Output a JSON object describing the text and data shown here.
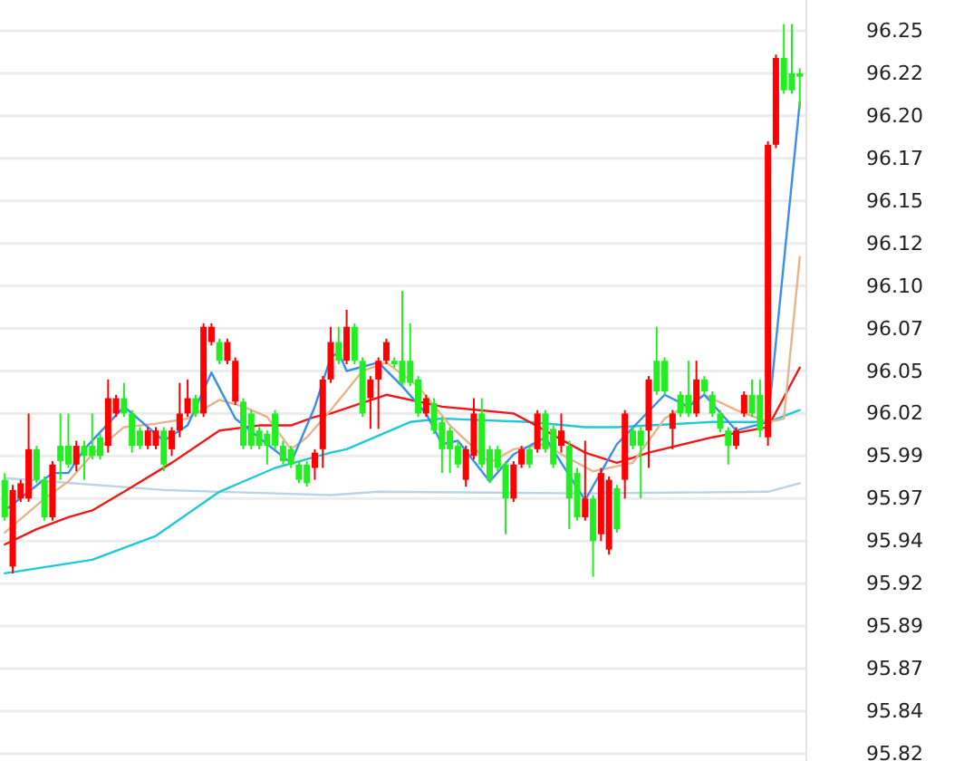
{
  "chart_data": {
    "type": "candlestick",
    "categories": [
      null,
      null,
      null,
      null,
      null,
      null,
      null,
      null,
      null,
      null,
      null,
      null,
      null,
      null,
      null,
      null,
      null,
      null,
      null,
      null,
      null,
      null,
      null,
      null,
      null,
      null,
      null,
      null,
      null,
      null,
      null,
      null,
      null,
      null,
      null,
      null,
      null,
      null,
      null,
      null,
      null,
      null,
      null,
      null,
      null,
      null,
      null,
      null,
      null,
      null,
      null,
      null,
      null,
      null,
      null,
      null,
      null,
      null,
      null,
      null,
      null,
      null,
      null,
      null,
      null,
      null,
      null,
      null,
      null,
      null,
      null,
      null,
      null,
      null,
      null,
      null,
      null,
      null,
      null,
      null,
      null,
      null,
      null,
      null,
      null,
      null,
      null,
      null,
      null,
      null,
      null,
      null,
      null,
      null,
      null,
      null,
      null,
      null,
      null,
      null,
      null
    ],
    "ohlc": [
      [
        95.981,
        95.985,
        95.957,
        95.959
      ],
      [
        95.93,
        95.978,
        95.926,
        95.975
      ],
      [
        95.97,
        95.981,
        95.968,
        95.979
      ],
      [
        95.97,
        96.02,
        95.968,
        95.999
      ],
      [
        95.999,
        96.001,
        95.979,
        95.981
      ],
      [
        95.981,
        95.983,
        95.957,
        95.959
      ],
      [
        95.959,
        95.992,
        95.957,
        95.99
      ],
      [
        96.001,
        96.02,
        95.981,
        95.992
      ],
      [
        96.001,
        96.02,
        95.988,
        95.99
      ],
      [
        95.99,
        96.004,
        95.986,
        96.001
      ],
      [
        96.001,
        96.004,
        95.981,
        95.995
      ],
      [
        96.001,
        96.02,
        95.993,
        95.995
      ],
      [
        96.006,
        96.008,
        95.993,
        95.995
      ],
      [
        96.001,
        96.04,
        95.997,
        96.029
      ],
      [
        96.02,
        96.031,
        96.018,
        96.029
      ],
      [
        96.029,
        96.038,
        96.018,
        96.02
      ],
      [
        96.02,
        96.022,
        95.997,
        96.001
      ],
      [
        96.01,
        96.012,
        95.999,
        96.001
      ],
      [
        96.001,
        96.012,
        95.999,
        96.01
      ],
      [
        96.001,
        96.012,
        95.999,
        96.01
      ],
      [
        96.01,
        96.012,
        95.986,
        95.99
      ],
      [
        95.999,
        96.012,
        95.995,
        96.01
      ],
      [
        96.01,
        96.038,
        96.006,
        96.02
      ],
      [
        96.02,
        96.04,
        96.018,
        96.029
      ],
      [
        96.029,
        96.031,
        96.018,
        96.02
      ],
      [
        96.02,
        96.073,
        96.018,
        96.071
      ],
      [
        96.062,
        96.073,
        96.06,
        96.071
      ],
      [
        96.062,
        96.064,
        96.049,
        96.051
      ],
      [
        96.051,
        96.064,
        96.049,
        96.062
      ],
      [
        96.027,
        96.053,
        96.025,
        96.051
      ],
      [
        96.027,
        96.029,
        95.999,
        96.001
      ],
      [
        96.02,
        96.022,
        95.999,
        96.001
      ],
      [
        96.01,
        96.012,
        95.999,
        96.001
      ],
      [
        96.008,
        96.01,
        95.99,
        96.001
      ],
      [
        96.02,
        96.022,
        95.999,
        96.001
      ],
      [
        96.001,
        96.004,
        95.99,
        95.992
      ],
      [
        95.999,
        96.001,
        95.988,
        95.99
      ],
      [
        95.99,
        95.992,
        95.979,
        95.981
      ],
      [
        95.99,
        95.992,
        95.977,
        95.979
      ],
      [
        95.988,
        95.999,
        95.981,
        95.997
      ],
      [
        95.999,
        96.042,
        95.988,
        96.04
      ],
      [
        96.04,
        96.071,
        96.038,
        96.062
      ],
      [
        96.062,
        96.071,
        96.049,
        96.051
      ],
      [
        96.051,
        96.081,
        96.049,
        96.071
      ],
      [
        96.071,
        96.073,
        96.049,
        96.051
      ],
      [
        96.051,
        96.053,
        96.018,
        96.02
      ],
      [
        96.029,
        96.042,
        96.011,
        96.04
      ],
      [
        96.04,
        96.053,
        96.011,
        96.051
      ],
      [
        96.051,
        96.064,
        96.049,
        96.062
      ],
      [
        96.051,
        96.053,
        96.047,
        96.049
      ],
      [
        96.051,
        96.092,
        96.036,
        96.038
      ],
      [
        96.051,
        96.073,
        96.036,
        96.038
      ],
      [
        96.04,
        96.042,
        96.018,
        96.02
      ],
      [
        96.02,
        96.031,
        96.018,
        96.029
      ],
      [
        96.026,
        96.029,
        96.008,
        96.01
      ],
      [
        96.015,
        96.018,
        95.985,
        95.999
      ],
      [
        96.01,
        96.012,
        95.985,
        95.999
      ],
      [
        96.001,
        96.004,
        95.988,
        95.99
      ],
      [
        95.981,
        96.001,
        95.977,
        95.999
      ],
      [
        95.995,
        96.029,
        95.993,
        96.02
      ],
      [
        96.02,
        96.029,
        95.988,
        95.99
      ],
      [
        95.999,
        96.001,
        95.979,
        95.981
      ],
      [
        95.999,
        96.001,
        95.986,
        95.988
      ],
      [
        95.99,
        95.992,
        95.949,
        95.97
      ],
      [
        95.97,
        95.992,
        95.968,
        95.99
      ],
      [
        95.99,
        96.001,
        95.988,
        95.999
      ],
      [
        95.999,
        96.001,
        95.988,
        95.99
      ],
      [
        95.999,
        96.022,
        95.997,
        96.02
      ],
      [
        96.02,
        96.022,
        95.997,
        95.999
      ],
      [
        96.011,
        96.013,
        95.988,
        95.99
      ],
      [
        96.001,
        96.02,
        95.997,
        96.01
      ],
      [
        96.001,
        96.004,
        95.952,
        95.97
      ],
      [
        95.985,
        95.988,
        95.957,
        95.959
      ],
      [
        95.959,
        96.004,
        95.957,
        95.97
      ],
      [
        95.97,
        95.972,
        95.924,
        95.945
      ],
      [
        95.949,
        95.988,
        95.945,
        95.985
      ],
      [
        95.94,
        95.983,
        95.937,
        95.981
      ],
      [
        95.976,
        95.978,
        95.95,
        95.952
      ],
      [
        95.981,
        96.022,
        95.97,
        96.02
      ],
      [
        96.01,
        96.012,
        95.999,
        96.001
      ],
      [
        96.01,
        96.012,
        95.97,
        96.001
      ],
      [
        96.01,
        96.042,
        95.988,
        96.04
      ],
      [
        96.051,
        96.071,
        96.031,
        96.033
      ],
      [
        96.051,
        96.053,
        96.031,
        96.033
      ],
      [
        96.011,
        96.022,
        95.999,
        96.02
      ],
      [
        96.031,
        96.033,
        96.018,
        96.02
      ],
      [
        96.031,
        96.051,
        96.018,
        96.02
      ],
      [
        96.02,
        96.051,
        96.018,
        96.04
      ],
      [
        96.04,
        96.042,
        96.031,
        96.033
      ],
      [
        96.031,
        96.033,
        96.018,
        96.02
      ],
      [
        96.02,
        96.022,
        96.009,
        96.011
      ],
      [
        96.01,
        96.012,
        95.99,
        96.001
      ],
      [
        96.001,
        96.012,
        95.999,
        96.01
      ],
      [
        96.02,
        96.033,
        96.018,
        96.031
      ],
      [
        96.031,
        96.04,
        96.018,
        96.02
      ],
      [
        96.031,
        96.04,
        96.006,
        96.01
      ],
      [
        96.006,
        96.18,
        96.001,
        96.178
      ],
      [
        96.178,
        96.231,
        96.176,
        96.229
      ],
      [
        96.229,
        96.249,
        96.208,
        96.21
      ],
      [
        96.22,
        96.249,
        96.208,
        96.21
      ],
      [
        96.22,
        96.223,
        96.199,
        96.218
      ]
    ],
    "colors": [
      "#22ee22",
      "#ff0000",
      "#ff0000",
      "#ff0000",
      "#22ee22",
      "#22ee22",
      "#ff0000",
      "#22ee22",
      "#22ee22",
      "#ff0000",
      "#22ee22",
      "#22ee22",
      "#22ee22",
      "#ff0000",
      "#ff0000",
      "#22ee22",
      "#22ee22",
      "#22ee22",
      "#ff0000",
      "#ff0000",
      "#22ee22",
      "#ff0000",
      "#ff0000",
      "#ff0000",
      "#22ee22",
      "#ff0000",
      "#ff0000",
      "#22ee22",
      "#ff0000",
      "#ff0000",
      "#22ee22",
      "#22ee22",
      "#22ee22",
      "#22ee22",
      "#22ee22",
      "#22ee22",
      "#22ee22",
      "#22ee22",
      "#22ee22",
      "#ff0000",
      "#ff0000",
      "#ff0000",
      "#22ee22",
      "#ff0000",
      "#22ee22",
      "#22ee22",
      "#ff0000",
      "#ff0000",
      "#ff0000",
      "#22ee22",
      "#22ee22",
      "#22ee22",
      "#22ee22",
      "#ff0000",
      "#22ee22",
      "#22ee22",
      "#22ee22",
      "#22ee22",
      "#ff0000",
      "#ff0000",
      "#22ee22",
      "#22ee22",
      "#22ee22",
      "#22ee22",
      "#ff0000",
      "#ff0000",
      "#22ee22",
      "#ff0000",
      "#22ee22",
      "#22ee22",
      "#ff0000",
      "#22ee22",
      "#22ee22",
      "#ff0000",
      "#22ee22",
      "#ff0000",
      "#ff0000",
      "#22ee22",
      "#ff0000",
      "#22ee22",
      "#22ee22",
      "#ff0000",
      "#22ee22",
      "#22ee22",
      "#ff0000",
      "#22ee22",
      "#22ee22",
      "#ff0000",
      "#22ee22",
      "#22ee22",
      "#22ee22",
      "#22ee22",
      "#ff0000",
      "#ff0000",
      "#22ee22",
      "#22ee22",
      "#ff0000",
      "#ff0000",
      "#22ee22",
      "#22ee22",
      "#22ee22"
    ],
    "series": [
      {
        "type": "line",
        "color": "#b8d4e6",
        "values": [
          95.982,
          null,
          null,
          null,
          null,
          null,
          null,
          null,
          null,
          null,
          null,
          null,
          null,
          null,
          null,
          null,
          null,
          null,
          null,
          null,
          95.975,
          null,
          null,
          null,
          null,
          null,
          null,
          null,
          null,
          null,
          null,
          null,
          null,
          null,
          null,
          null,
          null,
          null,
          null,
          null,
          null,
          95.972,
          null,
          null,
          null,
          null,
          null,
          95.974,
          null,
          null,
          null,
          null,
          null,
          null,
          null,
          null,
          null,
          null,
          null,
          null,
          null,
          null,
          null,
          null,
          null,
          null,
          null,
          null,
          null,
          null,
          null,
          null,
          null,
          95.973,
          null,
          null,
          null,
          null,
          null,
          null,
          null,
          null,
          null,
          null,
          null,
          null,
          null,
          null,
          null,
          null,
          null,
          null,
          null,
          null,
          null,
          null,
          95.974,
          null,
          null,
          null,
          95.979
        ]
      },
      {
        "type": "line",
        "color": "#20c8d8",
        "values": [
          95.926,
          null,
          null,
          null,
          null,
          null,
          null,
          null,
          null,
          null,
          null,
          95.934,
          null,
          null,
          null,
          null,
          null,
          null,
          null,
          95.948,
          null,
          null,
          null,
          null,
          null,
          null,
          null,
          95.974,
          null,
          null,
          null,
          null,
          null,
          null,
          95.988,
          null,
          null,
          null,
          null,
          null,
          null,
          95.997,
          null,
          95.999,
          null,
          null,
          null,
          null,
          null,
          null,
          null,
          96.015,
          null,
          null,
          null,
          96.017,
          null,
          null,
          null,
          null,
          null,
          null,
          null,
          null,
          null,
          null,
          96.015,
          null,
          null,
          null,
          null,
          null,
          null,
          96.012,
          null,
          null,
          null,
          96.012,
          null,
          null,
          null,
          null,
          null,
          null,
          null,
          null,
          null,
          null,
          null,
          96.015,
          null,
          null,
          null,
          null,
          null,
          null,
          96.015,
          null,
          null,
          null,
          96.022
        ]
      },
      {
        "type": "line",
        "color": "#f01818",
        "values": [
          95.943,
          null,
          null,
          null,
          95.952,
          null,
          null,
          null,
          95.959,
          null,
          null,
          95.963,
          null,
          null,
          null,
          95.974,
          null,
          null,
          null,
          null,
          null,
          95.991,
          null,
          null,
          null,
          null,
          null,
          96.01,
          null,
          null,
          null,
          null,
          96.013,
          null,
          null,
          null,
          96.013,
          null,
          null,
          96.018,
          null,
          96.02,
          null,
          null,
          null,
          null,
          null,
          null,
          96.031,
          null,
          null,
          null,
          null,
          null,
          null,
          96.024,
          null,
          null,
          null,
          null,
          null,
          null,
          null,
          null,
          96.02,
          null,
          96.015,
          null,
          null,
          null,
          null,
          null,
          null,
          95.997,
          null,
          null,
          null,
          95.991,
          null,
          null,
          null,
          95.997,
          null,
          null,
          null,
          null,
          null,
          null,
          null,
          96.006,
          null,
          null,
          null,
          null,
          null,
          null,
          96.012,
          null,
          null,
          null,
          96.047
        ]
      },
      {
        "type": "line",
        "color": "#e8b48c",
        "values": [
          95.95,
          null,
          null,
          null,
          null,
          95.97,
          null,
          null,
          95.98,
          null,
          null,
          95.996,
          null,
          null,
          null,
          96.012,
          null,
          null,
          null,
          96.014,
          null,
          null,
          null,
          96.017,
          null,
          null,
          null,
          96.028,
          null,
          null,
          96.024,
          null,
          null,
          96.018,
          null,
          null,
          95.999,
          null,
          96.006,
          null,
          null,
          96.022,
          null,
          null,
          null,
          96.045,
          null,
          null,
          96.05,
          null,
          null,
          null,
          96.036,
          null,
          null,
          null,
          96.013,
          null,
          null,
          null,
          null,
          95.991,
          null,
          null,
          95.999,
          null,
          null,
          null,
          96.002,
          null,
          95.996,
          null,
          null,
          null,
          95.986,
          null,
          null,
          null,
          null,
          95.991,
          null,
          null,
          null,
          96.017,
          null,
          null,
          null,
          null,
          96.031,
          null,
          null,
          null,
          96.022,
          null,
          null,
          null,
          96.015,
          null,
          96.017,
          null,
          96.112
        ]
      },
      {
        "type": "line",
        "color": "#3a8ef0",
        "values": [
          95.963,
          null,
          null,
          95.974,
          null,
          null,
          95.985,
          null,
          95.985,
          null,
          95.999,
          null,
          null,
          null,
          null,
          96.024,
          null,
          null,
          null,
          null,
          96.004,
          null,
          null,
          96.013,
          null,
          null,
          96.044,
          null,
          null,
          96.017,
          null,
          null,
          null,
          96.002,
          null,
          null,
          95.991,
          null,
          null,
          96.024,
          null,
          96.053,
          96.056,
          96.045,
          null,
          null,
          null,
          96.05,
          null,
          null,
          96.036,
          null,
          null,
          96.02,
          null,
          96.002,
          null,
          96.004,
          null,
          null,
          null,
          95.98,
          null,
          null,
          95.996,
          null,
          null,
          null,
          96.006,
          null,
          95.991,
          null,
          null,
          95.969,
          null,
          null,
          null,
          96.002,
          null,
          null,
          null,
          null,
          null,
          96.031,
          null,
          null,
          96.024,
          null,
          96.031,
          null,
          null,
          null,
          96.01,
          null,
          null,
          null,
          96.015,
          null,
          null,
          null,
          96.203
        ]
      }
    ],
    "ylim": [
      95.8157,
      96.2631
    ],
    "yticks": [
      95.82,
      {
        "value": 95.845,
        "label": "95.84"
      },
      95.87,
      {
        "value": 95.895,
        "label": "95.89"
      },
      95.92,
      {
        "value": 95.945,
        "label": "95.94"
      },
      95.97,
      {
        "value": 95.995,
        "label": "95.99"
      },
      96.02,
      {
        "value": 96.045,
        "label": "96.05"
      },
      96.07,
      {
        "value": 96.095,
        "label": "96.10"
      },
      96.12,
      {
        "value": 96.145,
        "label": "96.15"
      },
      96.17,
      {
        "value": 96.195,
        "label": "96.20"
      },
      96.22,
      {
        "value": 96.245,
        "label": "96.25"
      }
    ],
    "grid": "y",
    "tick_labels": "y"
  }
}
